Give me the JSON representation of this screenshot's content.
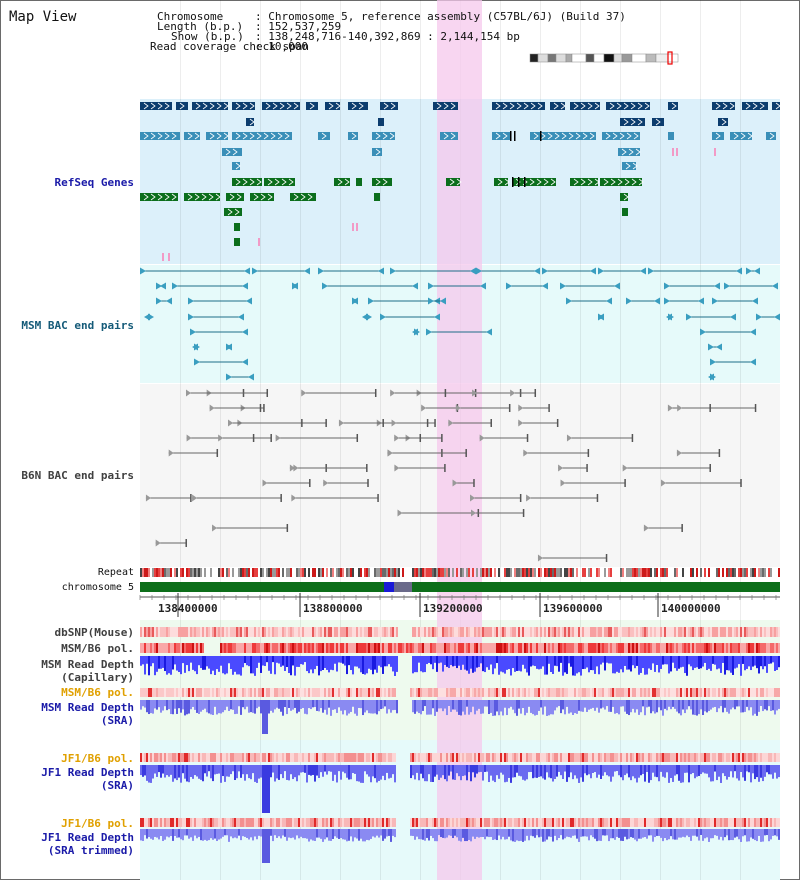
{
  "title": "Map View",
  "info": {
    "chromosome_label": "Chromosome",
    "chromosome_value": ": Chromosome 5, reference assembly (C57BL/6J) (Build 37)",
    "length_label": "Length (b.p.)",
    "length_value": ": 152,537,259",
    "show_label": "Show (b.p.)",
    "show_value": ": 138,248,716-140,392,869 : 2,144,154 bp",
    "read_span_label": "Read coverage check span",
    "read_span_value": ": 10,000"
  },
  "tracks": {
    "refseq": "RefSeq Genes",
    "msm_bac": "MSM BAC end pairs",
    "b6n_bac": "B6N BAC end pairs",
    "repeat": "Repeat",
    "chromosome": "chromosome 5",
    "dbsnp": "dbSNP(Mouse)",
    "msm_b6_pol_1": "MSM/B6 pol.",
    "msm_read_depth_cap_1": "MSM Read Depth",
    "msm_read_depth_cap_2": "(Capillary)",
    "msm_b6_pol_2": "MSM/B6 pol.",
    "msm_read_depth_sra_1": "MSM Read Depth",
    "msm_read_depth_sra_2": "(SRA)",
    "jf1_b6_pol_1": "JF1/B6 pol.",
    "jf1_read_depth_sra_1": "JF1 Read Depth",
    "jf1_read_depth_sra_2": "(SRA)",
    "jf1_b6_pol_2": "JF1/B6 pol.",
    "jf1_read_depth_trim_1": "JF1 Read Depth",
    "jf1_read_depth_trim_2": "(SRA trimmed)"
  },
  "scale": {
    "tick_labels": [
      "138400000",
      "138800000",
      "139200000",
      "139600000",
      "140000000"
    ]
  },
  "colors": {
    "refseq_bg": "#dcf0fa",
    "msm_bg": "#e6fafa",
    "b6n_bg": "#f6f6f6",
    "label_blue": "#1a1aa8",
    "label_teal": "#145a78",
    "label_orange": "#e0a000",
    "label_grey": "#404040",
    "highlight": "#f6c8ec"
  }
}
